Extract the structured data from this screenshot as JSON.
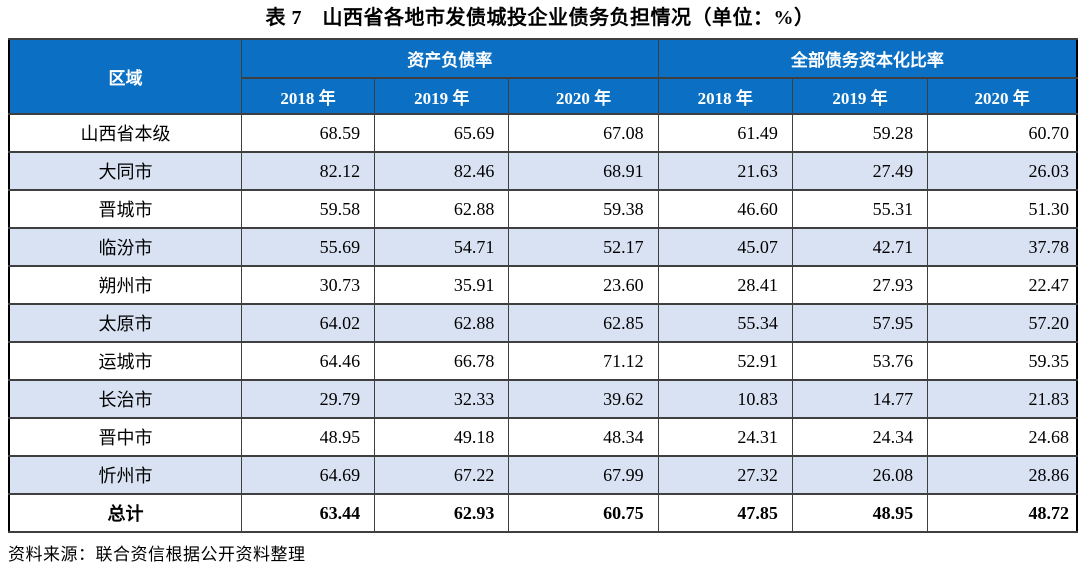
{
  "title": "表 7　山西省各地市发债城投企业债务负担情况（单位：%）",
  "table": {
    "region_header": "区域",
    "group_headers": [
      "资产负债率",
      "全部债务资本化比率"
    ],
    "year_headers": [
      "2018 年",
      "2019 年",
      "2020 年",
      "2018 年",
      "2019 年",
      "2020 年"
    ],
    "rows": [
      {
        "region": "山西省本级",
        "values": [
          "68.59",
          "65.69",
          "67.08",
          "61.49",
          "59.28",
          "60.70"
        ]
      },
      {
        "region": "大同市",
        "values": [
          "82.12",
          "82.46",
          "68.91",
          "21.63",
          "27.49",
          "26.03"
        ]
      },
      {
        "region": "晋城市",
        "values": [
          "59.58",
          "62.88",
          "59.38",
          "46.60",
          "55.31",
          "51.30"
        ]
      },
      {
        "region": "临汾市",
        "values": [
          "55.69",
          "54.71",
          "52.17",
          "45.07",
          "42.71",
          "37.78"
        ]
      },
      {
        "region": "朔州市",
        "values": [
          "30.73",
          "35.91",
          "23.60",
          "28.41",
          "27.93",
          "22.47"
        ]
      },
      {
        "region": "太原市",
        "values": [
          "64.02",
          "62.88",
          "62.85",
          "55.34",
          "57.95",
          "57.20"
        ]
      },
      {
        "region": "运城市",
        "values": [
          "64.46",
          "66.78",
          "71.12",
          "52.91",
          "53.76",
          "59.35"
        ]
      },
      {
        "region": "长治市",
        "values": [
          "29.79",
          "32.33",
          "39.62",
          "10.83",
          "14.77",
          "21.83"
        ]
      },
      {
        "region": "晋中市",
        "values": [
          "48.95",
          "49.18",
          "48.34",
          "24.31",
          "24.34",
          "24.68"
        ]
      },
      {
        "region": "忻州市",
        "values": [
          "64.69",
          "67.22",
          "67.99",
          "27.32",
          "26.08",
          "28.86"
        ]
      }
    ],
    "total_row": {
      "region": "总计",
      "values": [
        "63.44",
        "62.93",
        "60.75",
        "47.85",
        "48.95",
        "48.72"
      ]
    }
  },
  "source": "资料来源：联合资信根据公开资料整理",
  "colors": {
    "header_bg": "#0B70C4",
    "header_text": "#FFFFFF",
    "stripe_bg": "#D9E2F3",
    "border": "#3F3F3F"
  }
}
